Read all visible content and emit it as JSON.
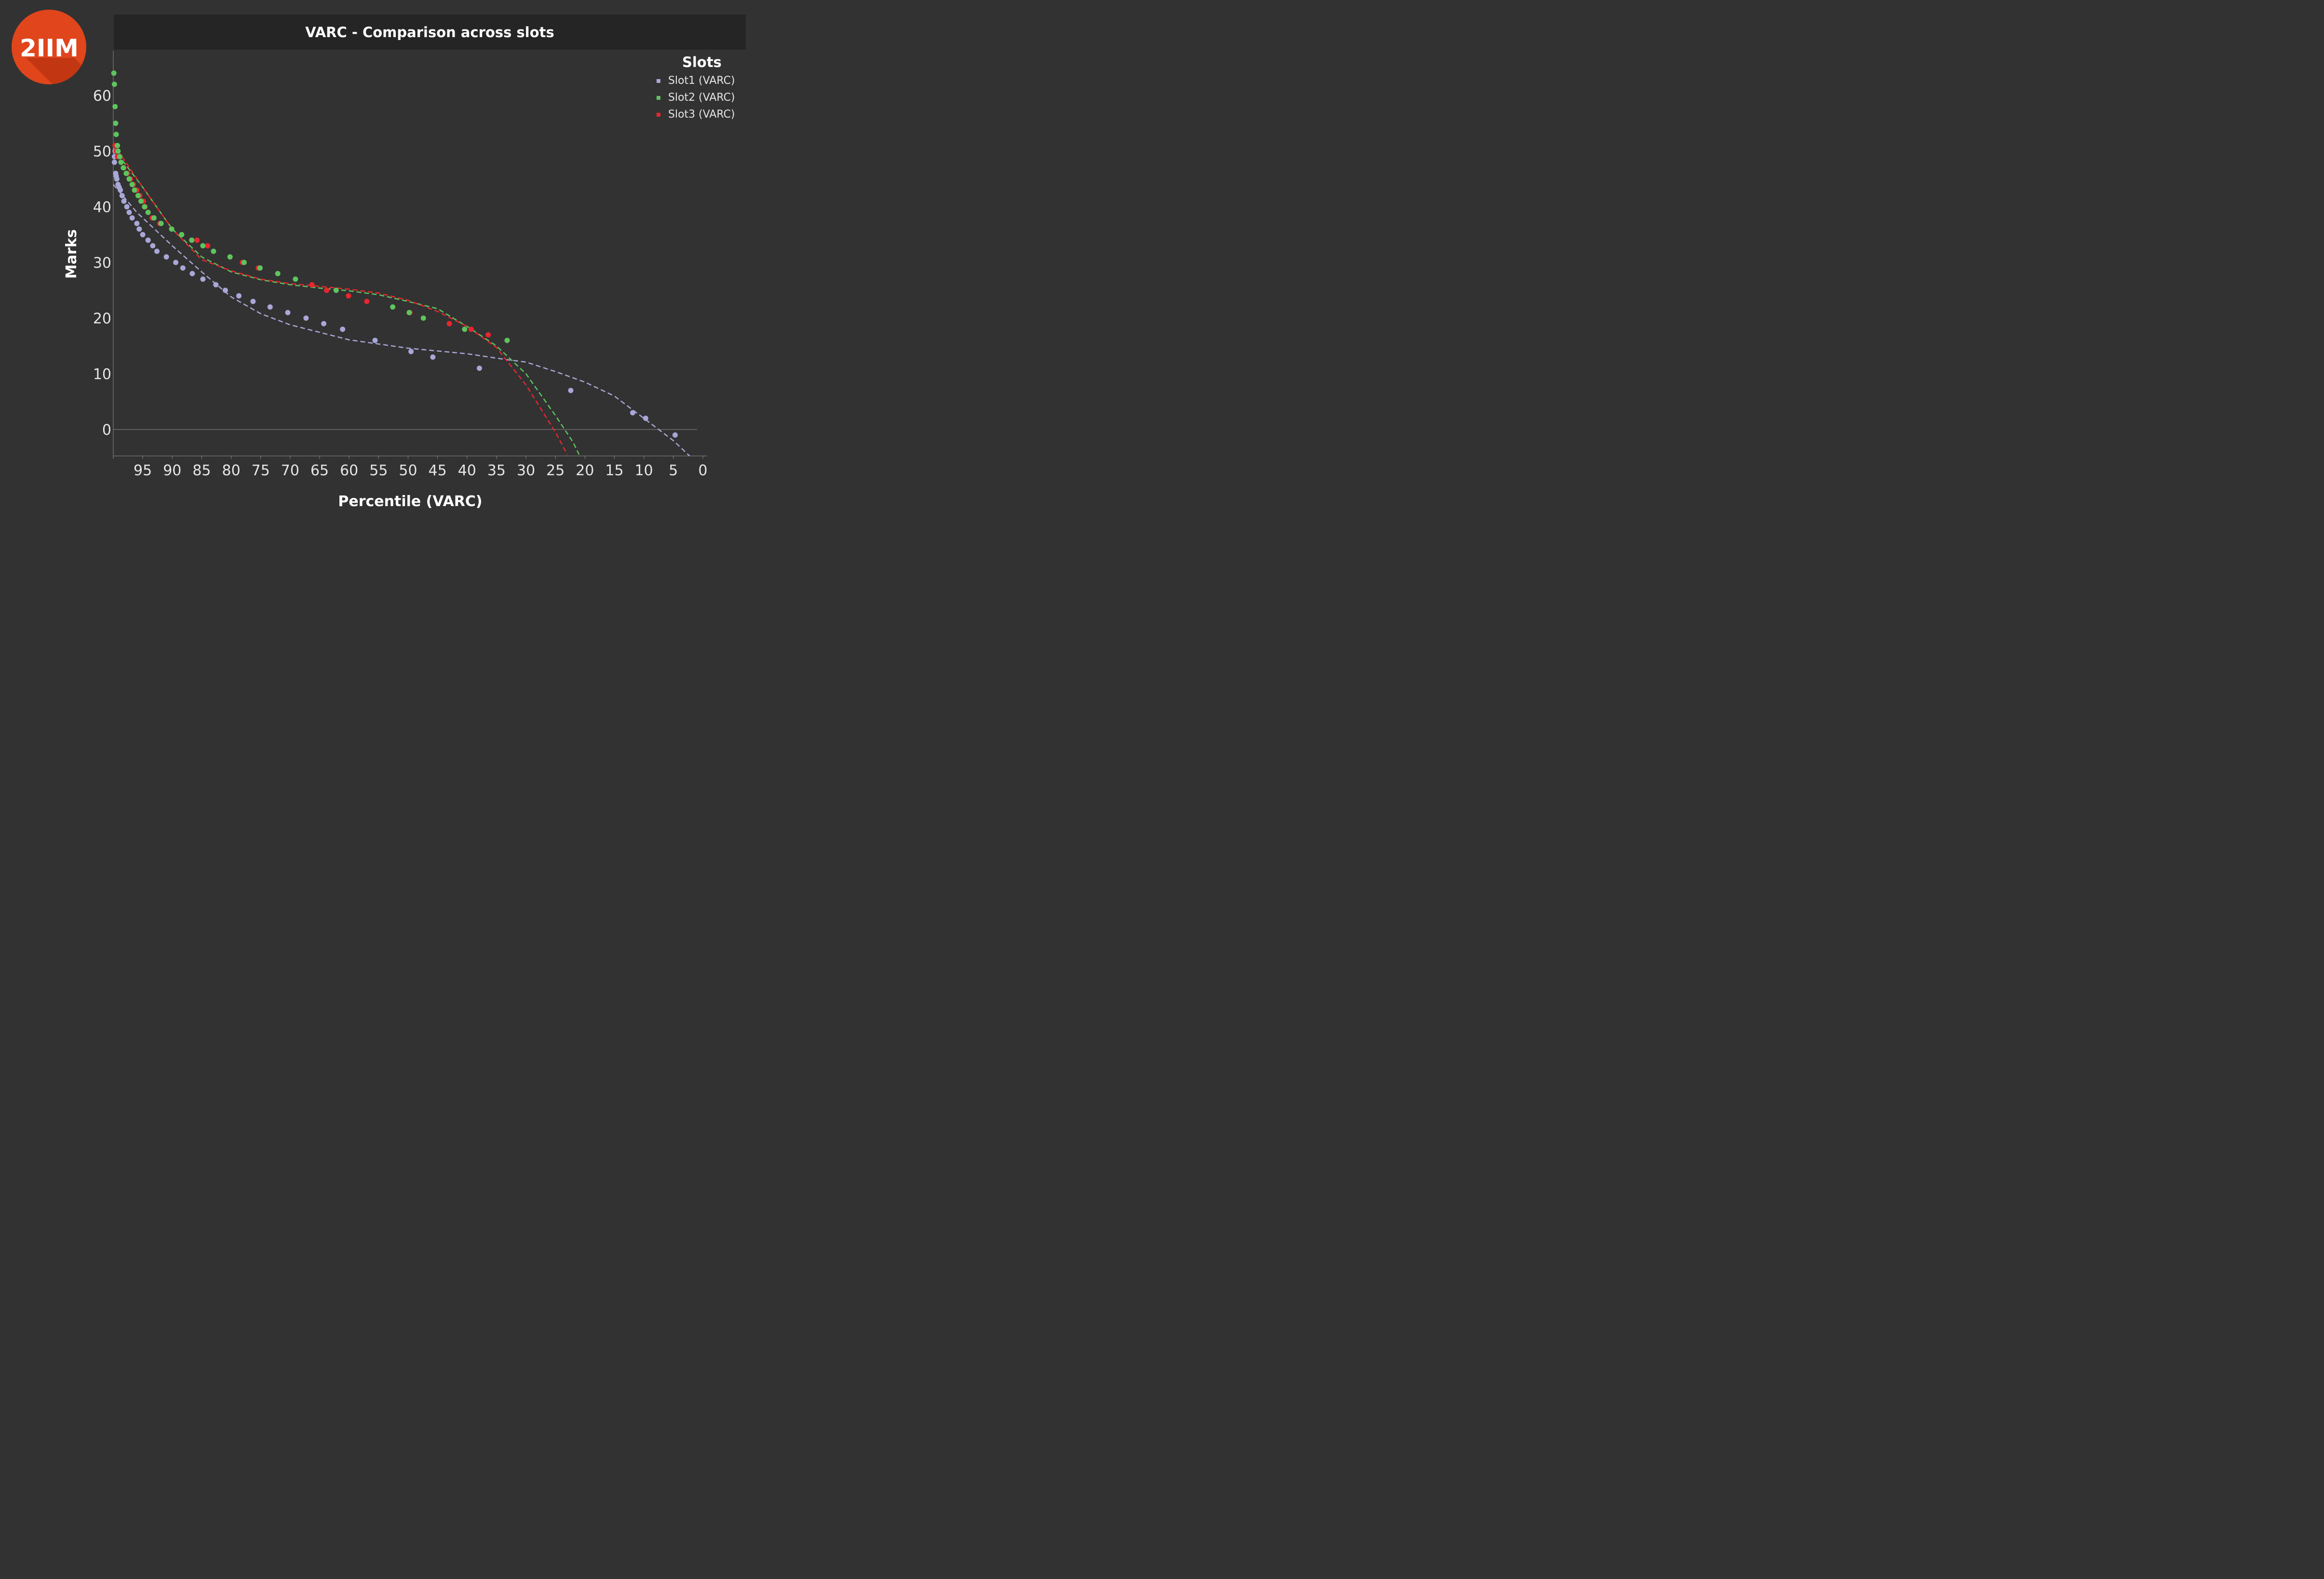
{
  "logo": {
    "text": "2IIM",
    "color": "#e0451c"
  },
  "chart_data": {
    "type": "scatter",
    "title": "VARC - Comparison across slots",
    "xlabel": "Percentile (VARC)",
    "ylabel": "Marks",
    "xlim": [
      100,
      0
    ],
    "ylim": [
      -4.8,
      68
    ],
    "xticks": [
      "95",
      "90",
      "85",
      "80",
      "75",
      "70",
      "65",
      "60",
      "55",
      "50",
      "45",
      "40",
      "35",
      "30",
      "25",
      "20",
      "15",
      "10",
      "5",
      "0"
    ],
    "yticks": [
      "0",
      "10",
      "20",
      "30",
      "40",
      "50",
      "60"
    ],
    "legend": {
      "title": "Slots",
      "position": "top-right"
    },
    "series": [
      {
        "name": "Slot1 (VARC)",
        "color": "#a9a6d8",
        "points": [
          [
            99.8,
            48
          ],
          [
            99.8,
            49
          ],
          [
            99.7,
            50
          ],
          [
            99.6,
            46
          ],
          [
            99.5,
            45.5
          ],
          [
            99.4,
            45
          ],
          [
            99.2,
            44
          ],
          [
            99,
            43.5
          ],
          [
            98.8,
            43
          ],
          [
            98.5,
            42
          ],
          [
            98.2,
            41
          ],
          [
            97.7,
            40
          ],
          [
            97.3,
            39
          ],
          [
            96.8,
            38
          ],
          [
            96,
            37
          ],
          [
            95.6,
            36
          ],
          [
            95,
            35
          ],
          [
            94.1,
            34
          ],
          [
            93.3,
            33
          ],
          [
            92.6,
            32
          ],
          [
            91,
            31
          ],
          [
            89.4,
            30
          ],
          [
            88.2,
            29
          ],
          [
            86.6,
            28
          ],
          [
            84.8,
            27
          ],
          [
            82.6,
            26
          ],
          [
            81,
            25
          ],
          [
            78.7,
            24
          ],
          [
            76.3,
            23
          ],
          [
            73.4,
            22
          ],
          [
            70.4,
            21
          ],
          [
            67.3,
            20
          ],
          [
            64.3,
            19
          ],
          [
            61.1,
            18
          ],
          [
            55.6,
            16
          ],
          [
            49.5,
            14
          ],
          [
            45.8,
            13
          ],
          [
            37.9,
            11
          ],
          [
            22.4,
            7
          ],
          [
            11.9,
            3
          ],
          [
            9.7,
            2
          ],
          [
            4.7,
            -1
          ]
        ],
        "trend": [
          [
            100,
            44
          ],
          [
            96,
            39
          ],
          [
            90,
            33
          ],
          [
            85,
            28.3
          ],
          [
            80,
            23.8
          ],
          [
            75,
            20.8
          ],
          [
            70,
            18.8
          ],
          [
            60,
            16.1
          ],
          [
            50,
            14.6
          ],
          [
            40,
            13.6
          ],
          [
            33,
            12.5
          ],
          [
            30,
            12.1
          ],
          [
            25,
            10.4
          ],
          [
            20,
            8.5
          ],
          [
            15,
            6
          ],
          [
            10,
            2
          ],
          [
            5,
            -2
          ],
          [
            2,
            -5
          ]
        ]
      },
      {
        "name": "Slot2 (VARC)",
        "color": "#5ec45e",
        "points": [
          [
            99.9,
            64
          ],
          [
            99.8,
            62
          ],
          [
            99.7,
            58
          ],
          [
            99.6,
            55
          ],
          [
            99.5,
            53
          ],
          [
            99.3,
            51
          ],
          [
            99.2,
            50
          ],
          [
            98.9,
            49
          ],
          [
            98.7,
            48
          ],
          [
            98.3,
            47
          ],
          [
            97.8,
            46
          ],
          [
            97.3,
            45
          ],
          [
            96.8,
            44
          ],
          [
            96.4,
            43
          ],
          [
            95.8,
            42
          ],
          [
            95.3,
            41
          ],
          [
            94.7,
            40
          ],
          [
            94.1,
            39
          ],
          [
            93.1,
            38
          ],
          [
            91.9,
            37
          ],
          [
            90.1,
            36
          ],
          [
            88.4,
            35
          ],
          [
            86.7,
            34
          ],
          [
            84.8,
            33
          ],
          [
            83,
            32
          ],
          [
            80.2,
            31
          ],
          [
            77.8,
            30
          ],
          [
            75.1,
            29
          ],
          [
            72.1,
            28
          ],
          [
            69.1,
            27
          ],
          [
            62.2,
            25
          ],
          [
            52.6,
            22
          ],
          [
            49.8,
            21
          ],
          [
            47.4,
            20
          ],
          [
            40.4,
            18
          ],
          [
            33.2,
            16
          ]
        ],
        "trend": [
          [
            100,
            50.5
          ],
          [
            95,
            43.5
          ],
          [
            90,
            36
          ],
          [
            85,
            31
          ],
          [
            80,
            28.3
          ],
          [
            75,
            26.9
          ],
          [
            70,
            26
          ],
          [
            65,
            25.4
          ],
          [
            60,
            24.9
          ],
          [
            55,
            24.2
          ],
          [
            50,
            23
          ],
          [
            45,
            21.7
          ],
          [
            40,
            18.5
          ],
          [
            35,
            15
          ],
          [
            30,
            10
          ],
          [
            25,
            2.5
          ],
          [
            22,
            -2.3
          ],
          [
            21,
            -4.5
          ]
        ]
      },
      {
        "name": "Slot3 (VARC)",
        "color": "#e8262e",
        "points": [
          [
            99.7,
            51
          ],
          [
            99.5,
            50
          ],
          [
            99.3,
            49
          ],
          [
            98.7,
            48
          ],
          [
            98.2,
            47
          ],
          [
            97.6,
            46
          ],
          [
            97.1,
            45
          ],
          [
            96.6,
            44
          ],
          [
            96,
            43
          ],
          [
            95.5,
            42
          ],
          [
            94.9,
            41
          ],
          [
            94.6,
            40
          ],
          [
            94.1,
            39
          ],
          [
            93.4,
            38
          ],
          [
            92.1,
            37
          ],
          [
            85.8,
            34
          ],
          [
            84,
            33
          ],
          [
            80.2,
            31
          ],
          [
            78.1,
            30
          ],
          [
            75.4,
            29
          ],
          [
            66.3,
            26
          ],
          [
            63.8,
            25
          ],
          [
            60.1,
            24
          ],
          [
            57,
            23
          ],
          [
            49.7,
            21
          ],
          [
            43,
            19
          ],
          [
            39.3,
            18
          ],
          [
            36.4,
            17
          ]
        ],
        "trend": [
          [
            100,
            51.3
          ],
          [
            95,
            43.5
          ],
          [
            90,
            36
          ],
          [
            85,
            30.5
          ],
          [
            80,
            28.5
          ],
          [
            75,
            27
          ],
          [
            70,
            26.2
          ],
          [
            60,
            25.2
          ],
          [
            55,
            24.5
          ],
          [
            50,
            23.2
          ],
          [
            45,
            21.2
          ],
          [
            40,
            18.5
          ],
          [
            35,
            14.7
          ],
          [
            30,
            8
          ],
          [
            25,
            -0.5
          ],
          [
            23,
            -4.5
          ]
        ]
      }
    ]
  }
}
